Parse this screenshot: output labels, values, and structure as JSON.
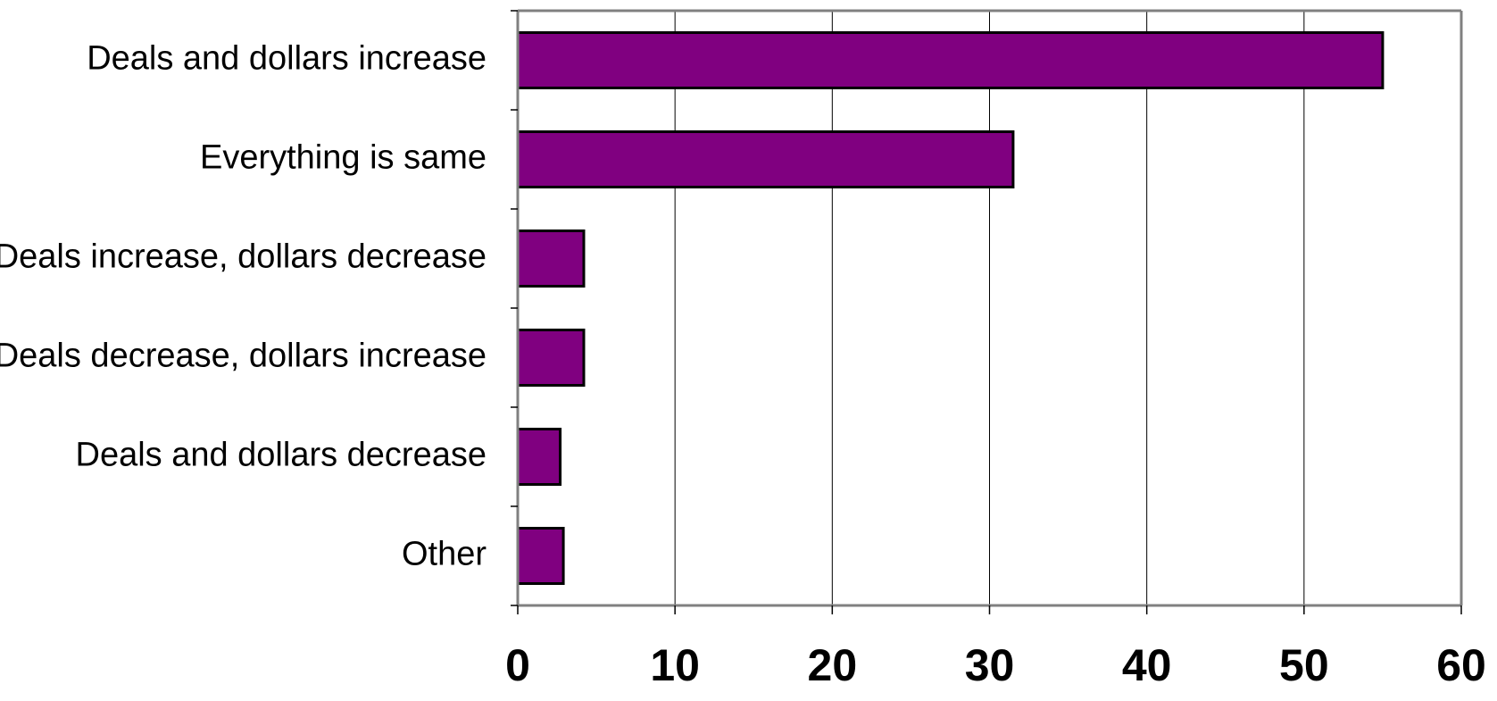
{
  "chart_data": {
    "type": "bar",
    "orientation": "horizontal",
    "categories": [
      "Deals and dollars increase",
      "Everything is same",
      "Deals increase, dollars decrease",
      "Deals decrease, dollars increase",
      "Deals and dollars decrease",
      "Other"
    ],
    "values": [
      55,
      31.5,
      4.2,
      4.2,
      2.7,
      2.9
    ],
    "xlim": [
      0,
      60
    ],
    "xticks": [
      "0",
      "10",
      "20",
      "30",
      "40",
      "50",
      "60"
    ],
    "xgrid": true,
    "legend": "none",
    "title": "",
    "xlabel": "",
    "ylabel": "",
    "colors": {
      "bar_fill": "#800080",
      "bar_stroke": "#000000",
      "grid": "#000000",
      "frame": "#808080",
      "background": "#ffffff"
    }
  }
}
